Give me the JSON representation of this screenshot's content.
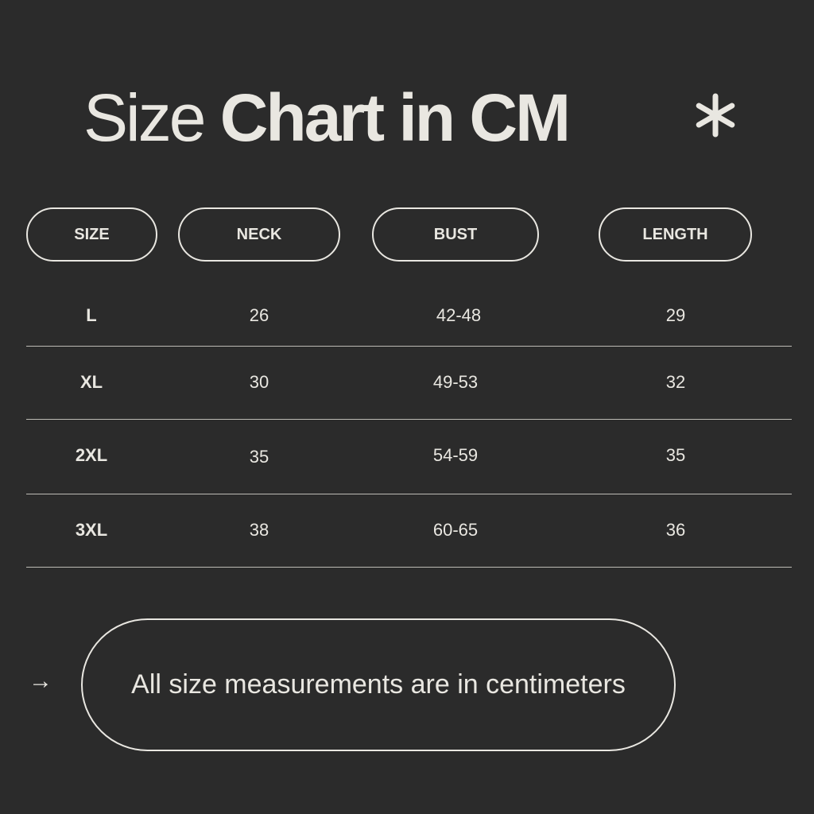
{
  "title": {
    "light": "Size",
    "bold": "Chart in CM"
  },
  "icons": {
    "decor": "asterisk-icon",
    "note": "arrow-right-icon"
  },
  "colors": {
    "background": "#2b2b2b",
    "foreground": "#e9e7e1"
  },
  "table": {
    "headers": [
      "SIZE",
      "NECK",
      "BUST",
      "LENGTH"
    ],
    "rows": [
      [
        "L",
        "26",
        "42-48",
        "29"
      ],
      [
        "XL",
        "30",
        "49-53",
        "32"
      ],
      [
        "2XL",
        "35",
        "54-59",
        "35"
      ],
      [
        "3XL",
        "38",
        "60-65",
        "36"
      ]
    ]
  },
  "note": {
    "arrow": "→",
    "text": "All size measurements are in centimeters"
  }
}
